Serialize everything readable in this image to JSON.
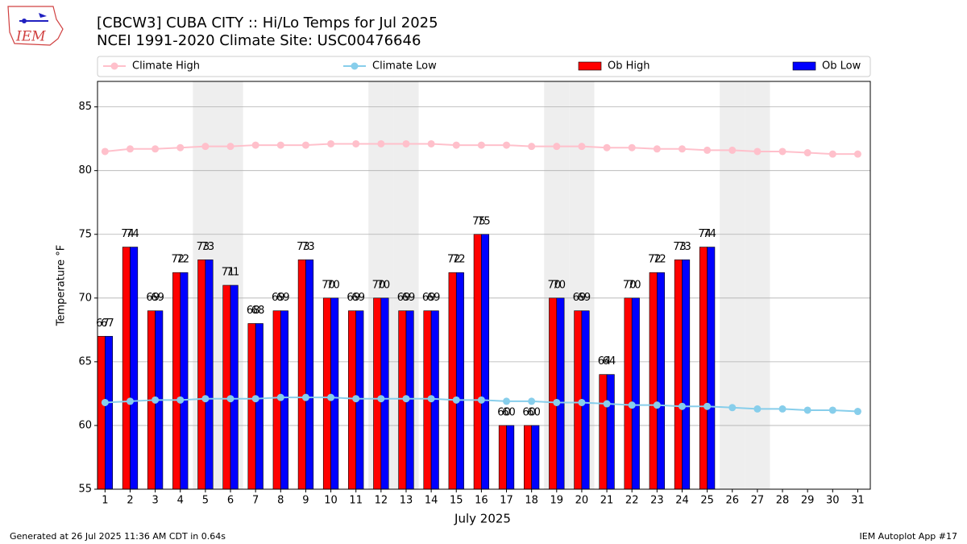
{
  "chart_data": {
    "type": "bar",
    "title": "[CBCW3] CUBA CITY :: Hi/Lo Temps for Jul 2025",
    "subtitle": "NCEI 1991-2020 Climate Site: USC00476646",
    "logo_text": "IEM",
    "x_label": "July 2025",
    "y_label": "Temperature °F",
    "footer_left": "Generated at 26 Jul 2025 11:36 AM CDT in 0.64s",
    "footer_right": "IEM Autoplot App #17",
    "x": [
      1,
      2,
      3,
      4,
      5,
      6,
      7,
      8,
      9,
      10,
      11,
      12,
      13,
      14,
      15,
      16,
      17,
      18,
      19,
      20,
      21,
      22,
      23,
      24,
      25,
      26,
      27,
      28,
      29,
      30,
      31
    ],
    "xlim": [
      0.7,
      31.5
    ],
    "ylim": [
      55,
      87
    ],
    "yticks": [
      55,
      60,
      65,
      70,
      75,
      80,
      85
    ],
    "grid": true,
    "shaded_x": [
      5,
      6,
      12,
      13,
      19,
      20,
      26,
      27
    ],
    "shade_color": "#eeeeee",
    "series": [
      {
        "name": "Climate High",
        "type": "line",
        "color": "#ffc0cb",
        "values": [
          81.5,
          81.7,
          81.7,
          81.8,
          81.9,
          81.9,
          82.0,
          82.0,
          82.0,
          82.1,
          82.1,
          82.1,
          82.1,
          82.1,
          82.0,
          82.0,
          82.0,
          81.9,
          81.9,
          81.9,
          81.8,
          81.8,
          81.7,
          81.7,
          81.6,
          81.6,
          81.5,
          81.5,
          81.4,
          81.3,
          81.3
        ]
      },
      {
        "name": "Climate Low",
        "type": "line",
        "color": "#87ceeb",
        "values": [
          61.8,
          61.9,
          62.0,
          62.0,
          62.1,
          62.1,
          62.1,
          62.2,
          62.2,
          62.2,
          62.1,
          62.1,
          62.1,
          62.1,
          62.0,
          62.0,
          61.9,
          61.9,
          61.8,
          61.8,
          61.7,
          61.6,
          61.6,
          61.5,
          61.5,
          61.4,
          61.3,
          61.3,
          61.2,
          61.2,
          61.1
        ]
      },
      {
        "name": "Ob High",
        "type": "bar",
        "color": "#ff0000",
        "values": [
          67,
          74,
          69,
          72,
          73,
          71,
          68,
          69,
          73,
          70,
          69,
          70,
          69,
          69,
          72,
          75,
          60,
          60,
          70,
          69,
          64,
          70,
          72,
          73,
          74,
          null,
          null,
          null,
          null,
          null,
          null
        ]
      },
      {
        "name": "Ob Low",
        "type": "bar",
        "color": "#0000ff",
        "values": [
          67,
          74,
          69,
          72,
          73,
          71,
          68,
          69,
          73,
          70,
          69,
          70,
          69,
          69,
          72,
          75,
          60,
          60,
          70,
          69,
          64,
          70,
          72,
          73,
          74,
          null,
          null,
          null,
          null,
          null,
          null
        ]
      }
    ]
  }
}
